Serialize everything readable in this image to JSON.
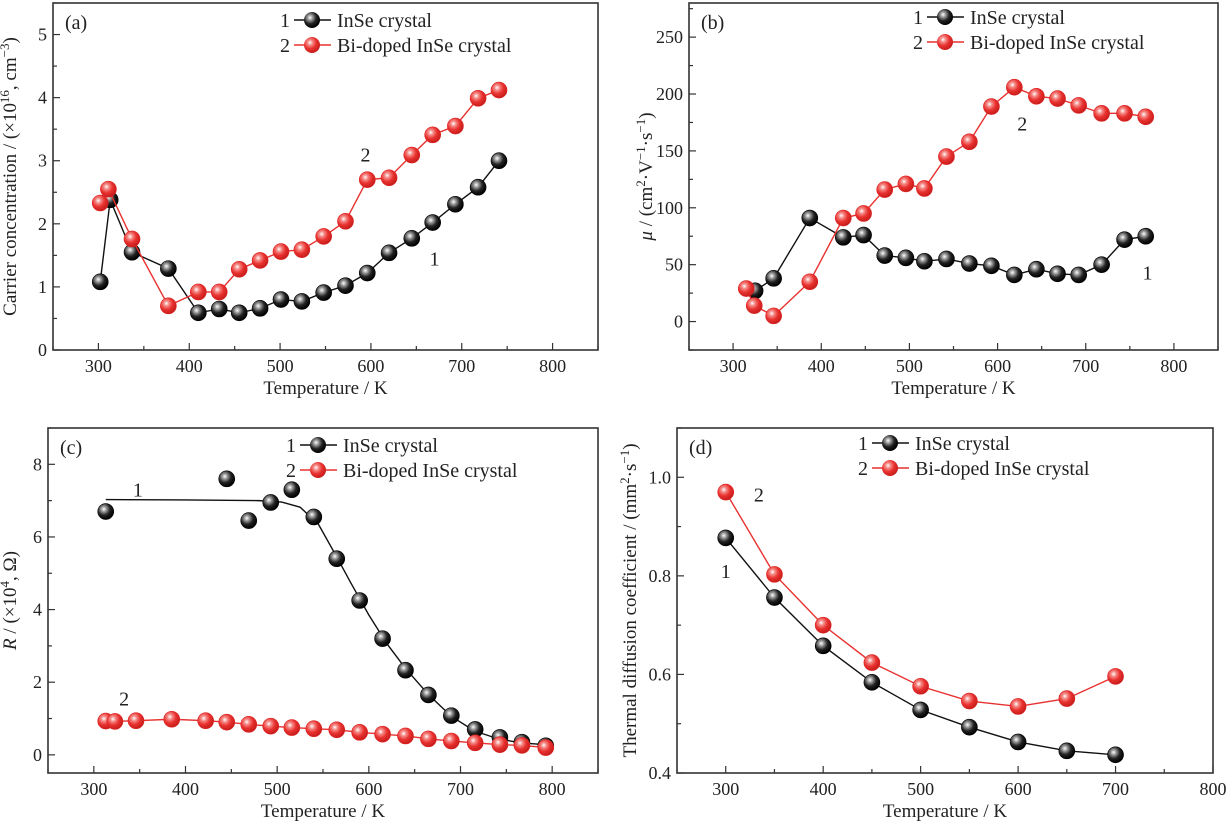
{
  "chart_data": [
    {
      "id": "a",
      "type": "line",
      "panel_label": "(a)",
      "xlabel": "Temperature / K",
      "ylabel": [
        {
          "t": "Carrier concentration / (×10"
        },
        {
          "t": "16",
          "sup": true
        },
        {
          "t": ", cm"
        },
        {
          "t": "−3",
          "sup": true
        },
        {
          "t": ")"
        }
      ],
      "xlim": [
        250,
        850
      ],
      "ylim": [
        0,
        5.5
      ],
      "xticks": [
        300,
        400,
        500,
        600,
        700,
        800
      ],
      "xminor": 50,
      "yticks": [
        0,
        1,
        2,
        3,
        4,
        5
      ],
      "yminor": 0.5,
      "grid": false,
      "legend_position": "top-right",
      "series": [
        {
          "name": "InSe crystal",
          "number": "1",
          "color": "#111111",
          "x": [
            302,
            313,
            337,
            377,
            410,
            433,
            455,
            478,
            501,
            524,
            548,
            572,
            596,
            620,
            645,
            668,
            693,
            718,
            741
          ],
          "y": [
            1.08,
            2.38,
            1.55,
            1.29,
            0.59,
            0.65,
            0.59,
            0.66,
            0.8,
            0.77,
            0.91,
            1.02,
            1.22,
            1.54,
            1.77,
            2.02,
            2.31,
            2.58,
            3.0
          ]
        },
        {
          "name": "Bi-doped InSe crystal",
          "number": "2",
          "color": "#e8312f",
          "x": [
            302,
            311,
            337,
            377,
            410,
            433,
            455,
            478,
            501,
            524,
            548,
            572,
            596,
            620,
            645,
            668,
            693,
            718,
            741
          ],
          "y": [
            2.33,
            2.55,
            1.76,
            0.7,
            0.92,
            0.92,
            1.28,
            1.42,
            1.56,
            1.59,
            1.8,
            2.04,
            2.7,
            2.73,
            3.09,
            3.41,
            3.55,
            3.99,
            4.12
          ]
        }
      ],
      "annotations": [
        {
          "text": "1",
          "x": 670,
          "y": 1.45
        },
        {
          "text": "2",
          "x": 594,
          "y": 3.1
        }
      ]
    },
    {
      "id": "b",
      "type": "line",
      "panel_label": "(b)",
      "xlabel": "Temperature / K",
      "ylabel": [
        {
          "t": "μ",
          "italic": true
        },
        {
          "t": " / (cm"
        },
        {
          "t": "2",
          "sup": true
        },
        {
          "t": "·V"
        },
        {
          "t": "−1",
          "sup": true
        },
        {
          "t": "·s"
        },
        {
          "t": "−1",
          "sup": true
        },
        {
          "t": ")"
        }
      ],
      "xlim": [
        250,
        850
      ],
      "ylim": [
        -25,
        280
      ],
      "xticks": [
        300,
        400,
        500,
        600,
        700,
        800
      ],
      "xminor": 50,
      "yticks": [
        0,
        50,
        100,
        150,
        200,
        250
      ],
      "yminor": 25,
      "grid": false,
      "legend_position": "top-right",
      "series": [
        {
          "name": "InSe crystal",
          "number": "1",
          "color": "#111111",
          "x": [
            325,
            346,
            387,
            425,
            448,
            472,
            496,
            517,
            542,
            568,
            593,
            619,
            644,
            668,
            692,
            718,
            744,
            768
          ],
          "y": [
            27,
            38,
            91,
            74,
            76,
            58,
            56,
            53,
            55,
            51,
            49,
            41,
            46,
            42,
            41,
            50,
            72,
            75
          ]
        },
        {
          "name": "Bi-doped InSe crystal",
          "number": "2",
          "color": "#e8312f",
          "x": [
            315,
            324,
            346,
            387,
            425,
            448,
            472,
            496,
            517,
            542,
            568,
            593,
            619,
            644,
            668,
            692,
            718,
            744,
            768
          ],
          "y": [
            29,
            14,
            5,
            35,
            91,
            95,
            116,
            121,
            117,
            145,
            158,
            189,
            206,
            198,
            196,
            190,
            183,
            183,
            180
          ]
        }
      ],
      "annotations": [
        {
          "text": "1",
          "x": 770,
          "y": 43
        },
        {
          "text": "2",
          "x": 628,
          "y": 174
        }
      ]
    },
    {
      "id": "c",
      "type": "scatter",
      "panel_label": "(c)",
      "xlabel": "Temperature / K",
      "ylabel": [
        {
          "t": "R",
          "italic": true
        },
        {
          "t": " / (×10"
        },
        {
          "t": "4",
          "sup": true
        },
        {
          "t": ", Ω)"
        }
      ],
      "xlim": [
        250,
        850
      ],
      "ylim": [
        -0.5,
        9
      ],
      "xticks": [
        300,
        400,
        500,
        600,
        700,
        800
      ],
      "xminor": 50,
      "yticks": [
        0,
        2,
        4,
        6,
        8
      ],
      "yminor": 1,
      "grid": false,
      "legend_position": "top-right",
      "series": [
        {
          "name": "InSe crystal",
          "number": "1",
          "color": "#111111",
          "x": [
            313,
            445,
            469,
            493,
            516,
            540,
            565,
            590,
            615,
            640,
            665,
            690,
            716,
            743,
            767,
            793
          ],
          "y": [
            6.7,
            7.6,
            6.45,
            6.95,
            7.3,
            6.55,
            5.4,
            4.25,
            3.2,
            2.33,
            1.65,
            1.08,
            0.7,
            0.48,
            0.35,
            0.25
          ],
          "fit": {
            "x": [
              313,
              400,
              480,
              505,
              525,
              545,
              565,
              580,
              600,
              620,
              640,
              665,
              690,
              715,
              740,
              765,
              793
            ],
            "y": [
              7.03,
              7.02,
              7.0,
              6.96,
              6.82,
              6.35,
              5.45,
              4.75,
              3.85,
              3.05,
              2.38,
              1.66,
              1.06,
              0.66,
              0.45,
              0.33,
              0.28
            ]
          }
        },
        {
          "name": "Bi-doped InSe crystal",
          "number": "2",
          "color": "#e8312f",
          "x": [
            313,
            323,
            346,
            385,
            422,
            445,
            469,
            493,
            516,
            540,
            565,
            590,
            615,
            640,
            665,
            690,
            716,
            743,
            767,
            793
          ],
          "y": [
            0.93,
            0.92,
            0.94,
            0.98,
            0.94,
            0.9,
            0.84,
            0.79,
            0.75,
            0.72,
            0.69,
            0.62,
            0.57,
            0.52,
            0.44,
            0.38,
            0.33,
            0.28,
            0.26,
            0.2
          ]
        }
      ],
      "annotations": [
        {
          "text": "1",
          "x": 348,
          "y": 7.3
        },
        {
          "text": "2",
          "x": 333,
          "y": 1.55
        }
      ]
    },
    {
      "id": "d",
      "type": "line",
      "panel_label": "(d)",
      "xlabel": "Temperature / K",
      "ylabel": [
        {
          "t": "Thermal diffusion coefficient / (mm"
        },
        {
          "t": "2",
          "sup": true
        },
        {
          "t": "·s"
        },
        {
          "t": "−1",
          "sup": true
        },
        {
          "t": ")"
        }
      ],
      "xlim": [
        250,
        800
      ],
      "ylim": [
        0.4,
        1.1
      ],
      "xticks": [
        300,
        400,
        500,
        600,
        700,
        800
      ],
      "xminor": 50,
      "yticks": [
        0.4,
        0.6,
        0.8,
        1.0
      ],
      "ytick_labels": [
        "0.4",
        "0.6",
        "0.8",
        "1.0"
      ],
      "yminor": 0.1,
      "grid": false,
      "legend_position": "top-right",
      "series": [
        {
          "name": "InSe crystal",
          "number": "1",
          "color": "#111111",
          "x": [
            300,
            350,
            400,
            450,
            500,
            550,
            600,
            650,
            700
          ],
          "y": [
            0.877,
            0.756,
            0.658,
            0.584,
            0.528,
            0.493,
            0.463,
            0.445,
            0.437
          ]
        },
        {
          "name": "Bi-doped InSe  crystal",
          "number": "2",
          "color": "#e8312f",
          "x": [
            300,
            350,
            400,
            450,
            500,
            550,
            600,
            650,
            700
          ],
          "y": [
            0.97,
            0.803,
            0.7,
            0.624,
            0.576,
            0.546,
            0.535,
            0.551,
            0.596
          ]
        }
      ],
      "annotations": [
        {
          "text": "1",
          "x": 300,
          "y": 0.81
        },
        {
          "text": "2",
          "x": 334,
          "y": 0.965
        }
      ]
    }
  ]
}
